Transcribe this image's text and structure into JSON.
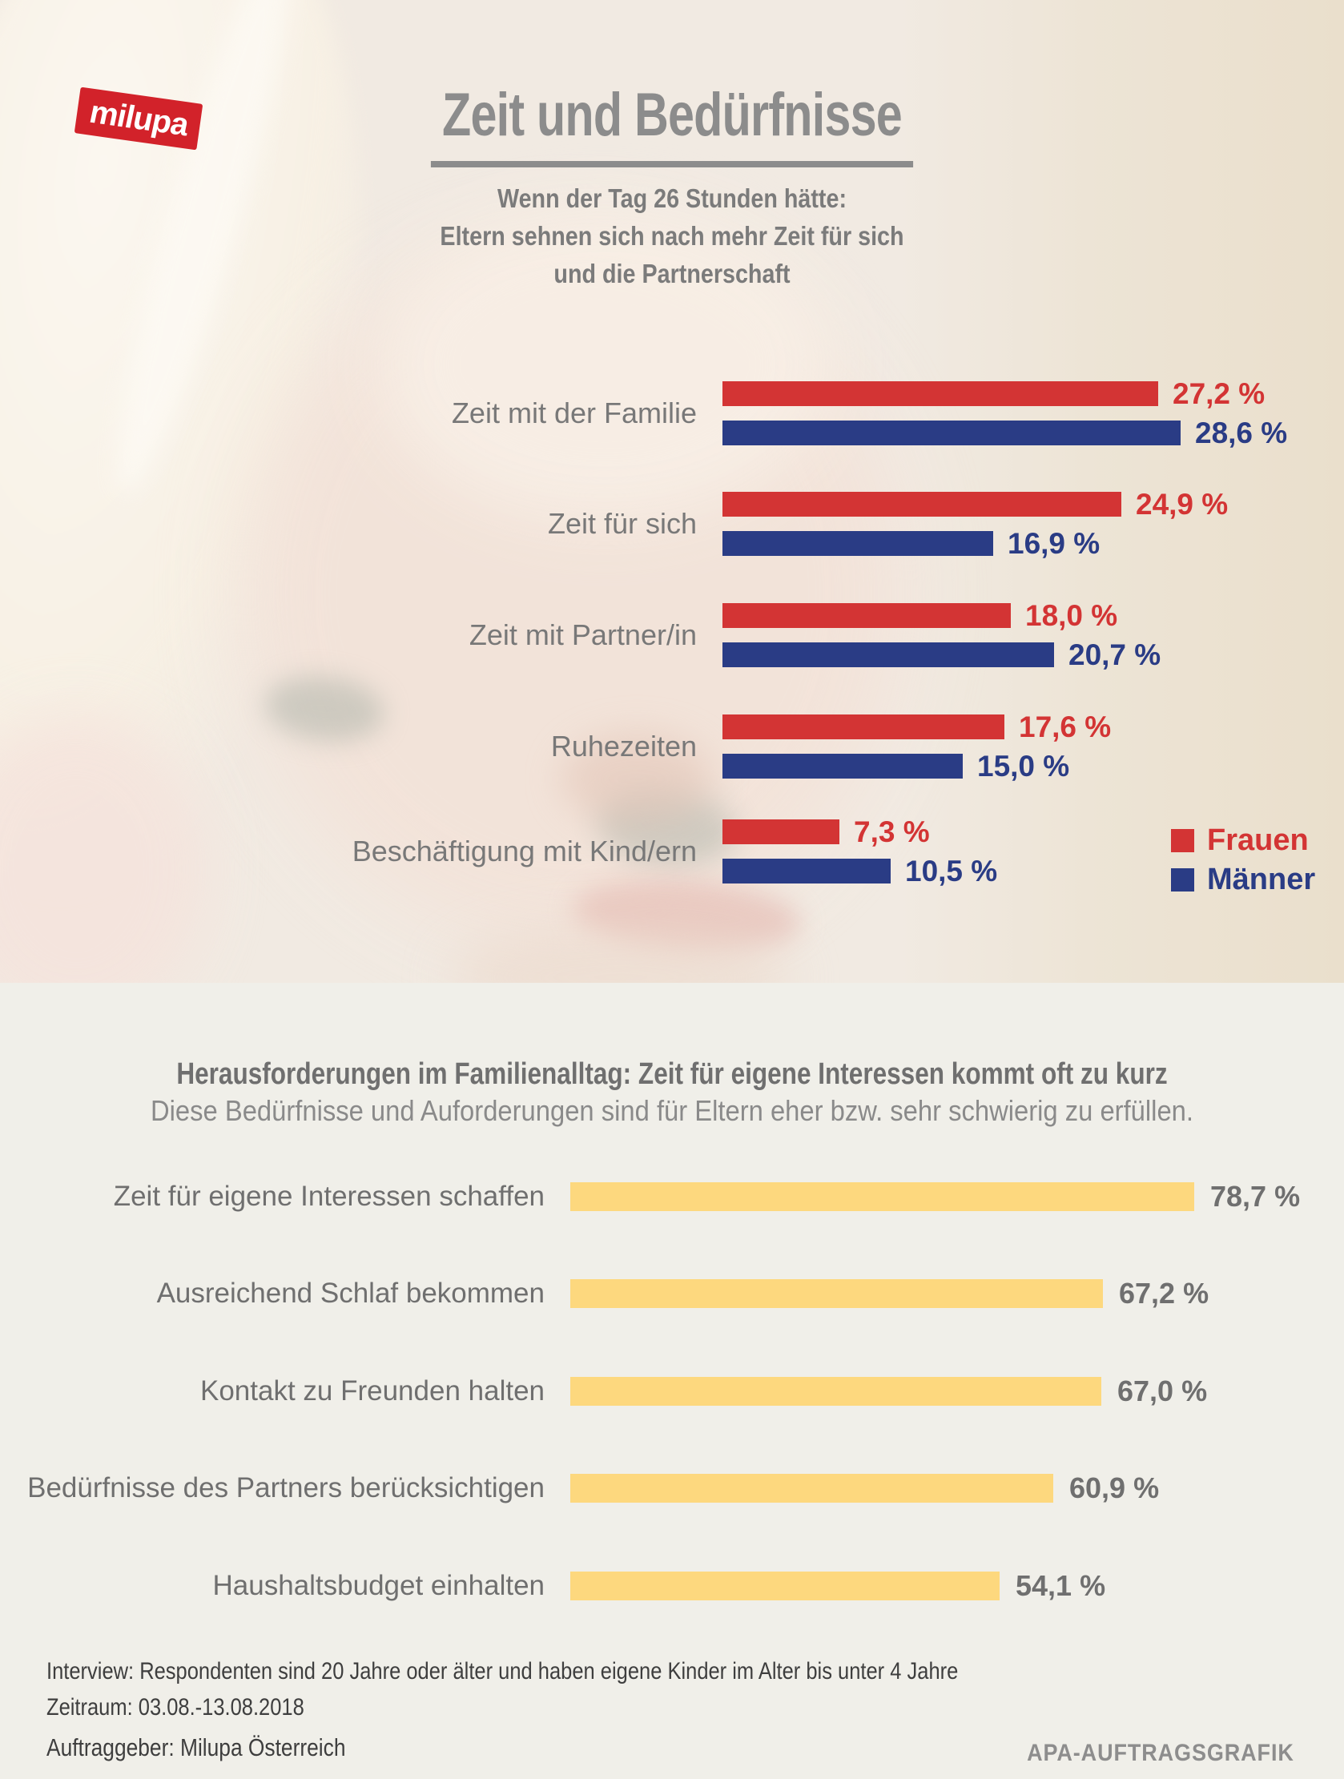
{
  "brand": {
    "logo_text": "milupa",
    "logo_color": "#d2222a"
  },
  "header": {
    "title": "Zeit und Bedürfnisse",
    "subtitle_lines": [
      "Wenn der Tag 26 Stunden hätte:",
      "Eltern sehnen sich nach mehr Zeit für sich",
      "und die Partnerschaft"
    ]
  },
  "chart_data": [
    {
      "type": "bar",
      "orientation": "horizontal",
      "title": "Wenn der Tag 26 Stunden hätte: Eltern sehnen sich nach mehr Zeit für sich und die Partnerschaft",
      "unit": "%",
      "xlim": [
        0,
        30
      ],
      "grid": false,
      "legend_position": "bottom-right",
      "categories": [
        "Zeit mit der Familie",
        "Zeit für sich",
        "Zeit mit Partner/in",
        "Ruhezeiten",
        "Beschäftigung mit Kind/ern"
      ],
      "series": [
        {
          "name": "Frauen",
          "key": "frauen",
          "color": "#d33434",
          "values": [
            27.2,
            24.9,
            18.0,
            17.6,
            7.3
          ],
          "value_labels": [
            "27,2 %",
            "24,9 %",
            "18,0 %",
            "17,6 %",
            "7,3 %"
          ]
        },
        {
          "name": "Männer",
          "key": "maenner",
          "color": "#2a3c85",
          "values": [
            28.6,
            16.9,
            20.7,
            15.0,
            10.5
          ],
          "value_labels": [
            "28,6 %",
            "16,9 %",
            "20,7 %",
            "15,0 %",
            "10,5 %"
          ]
        }
      ]
    },
    {
      "type": "bar",
      "orientation": "horizontal",
      "title": "Herausforderungen im Familienalltag: Zeit für eigene Interessen kommt oft zu kurz",
      "subtitle": "Diese Bedürfnisse und Auforderungen sind für Eltern eher bzw. sehr schwierig zu erfüllen.",
      "unit": "%",
      "xlim": [
        0,
        85
      ],
      "grid": false,
      "bar_color": "#fdd87e",
      "categories": [
        "Zeit für eigene Interessen schaffen",
        "Ausreichend Schlaf bekommen",
        "Kontakt zu Freunden halten",
        "Bedürfnisse des Partners berücksichtigen",
        "Haushaltsbudget einhalten"
      ],
      "values": [
        78.7,
        67.2,
        67.0,
        60.9,
        54.1
      ],
      "value_labels": [
        "78,7 %",
        "67,2 %",
        "67,0 %",
        "60,9 %",
        "54,1 %"
      ]
    }
  ],
  "legend": {
    "items": [
      {
        "label": "Frauen",
        "color": "#d33434"
      },
      {
        "label": "Männer",
        "color": "#2a3c85"
      }
    ]
  },
  "footer": {
    "interview_line": "Interview: Respondenten sind 20 Jahre oder älter und haben eigene Kinder im Alter bis unter 4 Jahre",
    "period_line": "Zeitraum: 03.08.-13.08.2018",
    "client_line": "Auftraggeber: Milupa Österreich",
    "credit": "APA-AUFTRAGSGRAFIK"
  },
  "palette": {
    "red": "#d33434",
    "blue": "#2a3c85",
    "yellow": "#fdd87e",
    "title_gray": "#8c8c8c",
    "label_gray": "#787878",
    "footer_dark": "#3e3e3e",
    "background_bottom": "#f0efe9",
    "background_photo": "#f1eae2"
  }
}
